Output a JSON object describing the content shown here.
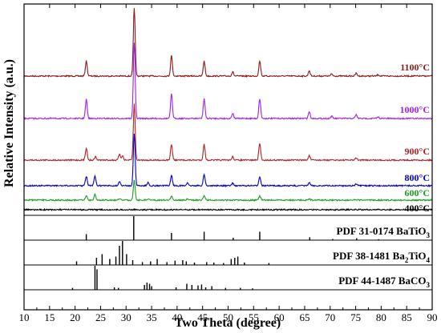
{
  "chart_data": {
    "type": "line",
    "title": "",
    "xlabel": "Two Theta (degree)",
    "ylabel": "Relative Intensity (a.u.)",
    "xlim": [
      10,
      90
    ],
    "x_ticks": [
      "10",
      "15",
      "20",
      "25",
      "30",
      "35",
      "40",
      "45",
      "50",
      "55",
      "60",
      "65",
      "70",
      "75",
      "80",
      "85",
      "90"
    ],
    "series": [
      {
        "name": "1100°C",
        "color": "#8b1a1a",
        "peaks": [
          [
            22.2,
            0.22
          ],
          [
            31.6,
            1.0
          ],
          [
            38.9,
            0.3
          ],
          [
            45.3,
            0.22
          ],
          [
            50.9,
            0.06
          ],
          [
            56.2,
            0.22
          ],
          [
            65.9,
            0.08
          ],
          [
            70.3,
            0.03
          ],
          [
            75.1,
            0.04
          ],
          [
            79.4,
            0.02
          ]
        ]
      },
      {
        "name": "1000°C",
        "color": "#a020f0",
        "peaks": [
          [
            22.2,
            0.25
          ],
          [
            31.6,
            1.0
          ],
          [
            38.9,
            0.32
          ],
          [
            45.3,
            0.26
          ],
          [
            50.9,
            0.07
          ],
          [
            56.2,
            0.26
          ],
          [
            65.9,
            0.09
          ],
          [
            70.3,
            0.03
          ],
          [
            75.1,
            0.05
          ],
          [
            79.4,
            0.02
          ]
        ]
      },
      {
        "name": "900°C",
        "color": "#b22222",
        "peaks": [
          [
            22.2,
            0.22
          ],
          [
            24.0,
            0.06
          ],
          [
            28.7,
            0.1
          ],
          [
            29.3,
            0.08
          ],
          [
            31.6,
            1.0
          ],
          [
            38.9,
            0.28
          ],
          [
            45.3,
            0.28
          ],
          [
            50.9,
            0.06
          ],
          [
            56.2,
            0.3
          ],
          [
            65.9,
            0.08
          ],
          [
            75.1,
            0.04
          ]
        ]
      },
      {
        "name": "800°C",
        "color": "#0000cd",
        "peaks": [
          [
            22.2,
            0.18
          ],
          [
            23.9,
            0.18
          ],
          [
            28.7,
            0.08
          ],
          [
            31.6,
            1.0
          ],
          [
            34.3,
            0.06
          ],
          [
            38.9,
            0.2
          ],
          [
            42.0,
            0.05
          ],
          [
            45.3,
            0.22
          ],
          [
            50.9,
            0.05
          ],
          [
            56.2,
            0.18
          ],
          [
            65.9,
            0.06
          ],
          [
            75.1,
            0.03
          ]
        ]
      },
      {
        "name": "600°C",
        "color": "#1e9e1e",
        "peaks": [
          [
            22.2,
            0.22
          ],
          [
            23.9,
            0.28
          ],
          [
            28.7,
            0.08
          ],
          [
            31.6,
            1.0
          ],
          [
            34.4,
            0.08
          ],
          [
            38.9,
            0.2
          ],
          [
            42.0,
            0.05
          ],
          [
            45.3,
            0.24
          ],
          [
            56.2,
            0.2
          ],
          [
            65.9,
            0.06
          ]
        ]
      },
      {
        "name": "400°C",
        "color": "#000000",
        "peaks": [
          [
            23.9,
            0.05
          ],
          [
            31.6,
            0.03
          ]
        ]
      }
    ],
    "reference_patterns": [
      {
        "name": "PDF 31-0174 BaTiO3",
        "label_main": "PDF 31-0174 BaTiO",
        "label_sub": "3",
        "lines": [
          [
            22.2,
            0.25
          ],
          [
            31.5,
            1.0
          ],
          [
            38.9,
            0.3
          ],
          [
            45.3,
            0.35
          ],
          [
            51.0,
            0.1
          ],
          [
            56.2,
            0.35
          ],
          [
            66.0,
            0.12
          ],
          [
            70.5,
            0.05
          ],
          [
            75.2,
            0.08
          ],
          [
            79.5,
            0.04
          ]
        ]
      },
      {
        "name": "PDF 38-1481 Ba2TiO4",
        "label_main": "PDF 38-1481 Ba",
        "label_sub1": "2",
        "label_mid": "TiO",
        "label_sub2": "4",
        "lines": [
          [
            20.3,
            0.15
          ],
          [
            24.2,
            0.3
          ],
          [
            25.3,
            0.45
          ],
          [
            26.8,
            0.25
          ],
          [
            28.0,
            0.35
          ],
          [
            28.7,
            0.8
          ],
          [
            29.3,
            1.0
          ],
          [
            30.1,
            0.45
          ],
          [
            31.3,
            0.2
          ],
          [
            33.2,
            0.12
          ],
          [
            34.8,
            0.15
          ],
          [
            36.1,
            0.25
          ],
          [
            38.0,
            0.12
          ],
          [
            39.6,
            0.18
          ],
          [
            41.1,
            0.2
          ],
          [
            41.8,
            0.15
          ],
          [
            43.4,
            0.1
          ],
          [
            45.8,
            0.12
          ],
          [
            47.2,
            0.1
          ],
          [
            49.1,
            0.08
          ],
          [
            50.6,
            0.25
          ],
          [
            51.3,
            0.3
          ],
          [
            51.9,
            0.35
          ],
          [
            53.2,
            0.1
          ],
          [
            58.0,
            0.08
          ]
        ]
      },
      {
        "name": "PDF 44-1487 BaCO3",
        "label_main": "PDF 44-1487 BaCO",
        "label_sub": "3",
        "lines": [
          [
            19.5,
            0.08
          ],
          [
            23.9,
            1.0
          ],
          [
            24.3,
            0.85
          ],
          [
            27.7,
            0.1
          ],
          [
            28.5,
            0.08
          ],
          [
            33.6,
            0.2
          ],
          [
            34.1,
            0.3
          ],
          [
            34.6,
            0.25
          ],
          [
            35.0,
            0.15
          ],
          [
            39.8,
            0.1
          ],
          [
            41.9,
            0.25
          ],
          [
            42.9,
            0.2
          ],
          [
            44.1,
            0.18
          ],
          [
            44.8,
            0.22
          ],
          [
            45.6,
            0.1
          ],
          [
            46.8,
            0.15
          ],
          [
            49.5,
            0.08
          ],
          [
            52.4,
            0.08
          ],
          [
            54.8,
            0.06
          ]
        ]
      }
    ]
  }
}
